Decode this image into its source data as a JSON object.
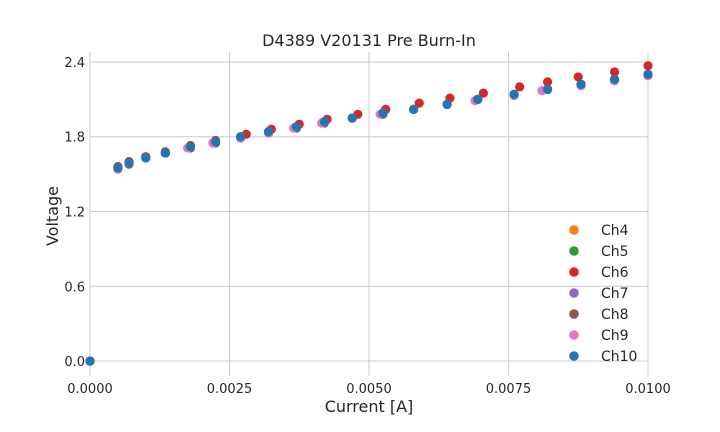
{
  "chart_data": {
    "type": "scatter",
    "title": "D4389 V20131 Pre Burn-In",
    "xlabel": "Current [A]",
    "ylabel": "Voltage",
    "xlim": [
      0,
      0.01
    ],
    "ylim": [
      -0.12,
      2.48
    ],
    "xticks": [
      0,
      0.0025,
      0.005,
      0.0075,
      0.01
    ],
    "xtick_labels": [
      "0.0000",
      "0.0025",
      "0.0050",
      "0.0075",
      "0.0100"
    ],
    "yticks": [
      0,
      0.6,
      1.2,
      1.8,
      2.4
    ],
    "ytick_labels": [
      "0.0",
      "0.6",
      "1.2",
      "1.8",
      "2.4"
    ],
    "grid": true,
    "legend_position": "lower-right",
    "series": [
      {
        "name": "Ch4",
        "color": "#ff7f0e",
        "x": [
          0,
          0.0005,
          0.0007,
          0.001,
          0.00135,
          0.0018,
          0.00225,
          0.0027,
          0.0032,
          0.0037,
          0.0042,
          0.0047,
          0.00525,
          0.0058,
          0.0064,
          0.00695,
          0.0076,
          0.0082,
          0.0088,
          0.0094,
          0.01
        ],
        "y": [
          0,
          1.55,
          1.59,
          1.63,
          1.67,
          1.72,
          1.76,
          1.8,
          1.84,
          1.88,
          1.92,
          1.95,
          1.99,
          2.02,
          2.06,
          2.1,
          2.14,
          2.18,
          2.22,
          2.26,
          2.3
        ]
      },
      {
        "name": "Ch5",
        "color": "#2ca02c",
        "x": [
          0,
          0.0005,
          0.0007,
          0.001,
          0.00135,
          0.0018,
          0.00225,
          0.0027,
          0.0032,
          0.0037,
          0.0042,
          0.0047,
          0.00525,
          0.0058,
          0.0064,
          0.00695,
          0.0076,
          0.0082,
          0.0088,
          0.0094,
          0.01
        ],
        "y": [
          0,
          1.55,
          1.59,
          1.63,
          1.67,
          1.72,
          1.76,
          1.8,
          1.84,
          1.88,
          1.92,
          1.95,
          1.99,
          2.02,
          2.06,
          2.1,
          2.14,
          2.18,
          2.22,
          2.26,
          2.3
        ]
      },
      {
        "name": "Ch6",
        "color": "#d62728",
        "x": [
          0,
          0.0005,
          0.0007,
          0.001,
          0.00135,
          0.0018,
          0.00225,
          0.0028,
          0.00325,
          0.00375,
          0.00425,
          0.0048,
          0.0053,
          0.0059,
          0.00645,
          0.00705,
          0.0077,
          0.0082,
          0.00875,
          0.0094,
          0.01
        ],
        "y": [
          0,
          1.56,
          1.6,
          1.64,
          1.68,
          1.73,
          1.77,
          1.82,
          1.86,
          1.9,
          1.94,
          1.98,
          2.02,
          2.07,
          2.11,
          2.15,
          2.2,
          2.24,
          2.28,
          2.32,
          2.37
        ]
      },
      {
        "name": "Ch7",
        "color": "#9467bd",
        "x": [
          0,
          0.0005,
          0.0007,
          0.001,
          0.00135,
          0.0018,
          0.00225,
          0.0027,
          0.0032,
          0.0037,
          0.0042,
          0.0047,
          0.00525,
          0.0058,
          0.0064,
          0.00695,
          0.0076,
          0.0082,
          0.0088,
          0.0094,
          0.01
        ],
        "y": [
          0,
          1.55,
          1.59,
          1.63,
          1.67,
          1.72,
          1.76,
          1.8,
          1.84,
          1.88,
          1.92,
          1.95,
          1.99,
          2.02,
          2.06,
          2.1,
          2.14,
          2.18,
          2.21,
          2.25,
          2.29
        ]
      },
      {
        "name": "Ch8",
        "color": "#8c564b",
        "x": [
          0,
          0.0005,
          0.0007,
          0.001,
          0.00135,
          0.0018,
          0.00225,
          0.0027,
          0.0032,
          0.0037,
          0.0042,
          0.0047,
          0.00525,
          0.0058,
          0.0064,
          0.00695,
          0.0076,
          0.0082,
          0.0088,
          0.0094,
          0.01
        ],
        "y": [
          0,
          1.54,
          1.58,
          1.63,
          1.67,
          1.71,
          1.75,
          1.79,
          1.83,
          1.87,
          1.91,
          1.95,
          1.98,
          2.02,
          2.06,
          2.1,
          2.14,
          2.18,
          2.22,
          2.26,
          2.3
        ]
      },
      {
        "name": "Ch9",
        "color": "#e377c2",
        "x": [
          0,
          0.0005,
          0.0007,
          0.001,
          0.00135,
          0.00175,
          0.0022,
          0.0027,
          0.0032,
          0.00365,
          0.00415,
          0.0047,
          0.0052,
          0.0058,
          0.0064,
          0.0069,
          0.0076,
          0.0081,
          0.0088,
          0.0094,
          0.01
        ],
        "y": [
          0,
          1.54,
          1.59,
          1.63,
          1.67,
          1.71,
          1.75,
          1.79,
          1.83,
          1.87,
          1.91,
          1.95,
          1.98,
          2.02,
          2.06,
          2.09,
          2.13,
          2.17,
          2.21,
          2.25,
          2.29
        ]
      },
      {
        "name": "Ch10",
        "color": "#1f77b4",
        "x": [
          0,
          0.0005,
          0.0007,
          0.001,
          0.00135,
          0.0018,
          0.00225,
          0.0027,
          0.0032,
          0.0037,
          0.0042,
          0.0047,
          0.00525,
          0.0058,
          0.0064,
          0.00695,
          0.0076,
          0.0082,
          0.0088,
          0.0094,
          0.01
        ],
        "y": [
          0,
          1.55,
          1.59,
          1.63,
          1.67,
          1.72,
          1.76,
          1.8,
          1.84,
          1.88,
          1.92,
          1.95,
          1.99,
          2.02,
          2.06,
          2.1,
          2.14,
          2.18,
          2.22,
          2.26,
          2.3
        ]
      }
    ]
  }
}
